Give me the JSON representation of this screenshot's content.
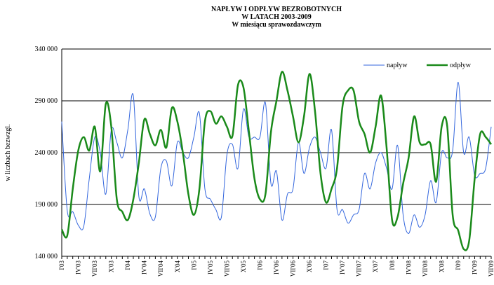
{
  "chart_data": {
    "type": "line",
    "title": [
      "NAPŁYW I ODPŁYW BEZROBOTNYCH",
      "W LATACH 2003-2009",
      "W miesiącu sprawozdawczym"
    ],
    "y_label": "w liczbach bezwzgl.",
    "categories": [
      "I'03",
      null,
      null,
      "IV'03",
      null,
      null,
      "VII'03",
      null,
      null,
      "X'03",
      null,
      null,
      "I'04",
      null,
      null,
      "IV'04",
      null,
      null,
      "VII'04",
      null,
      null,
      "X'04",
      null,
      null,
      "I'05",
      null,
      null,
      "IV'05",
      null,
      null,
      "VII'05",
      null,
      null,
      "X'05",
      null,
      null,
      "I'06",
      null,
      null,
      "IV'06",
      null,
      null,
      "VII'06",
      null,
      null,
      "X'06",
      null,
      null,
      "I'07",
      null,
      null,
      "IV'07",
      null,
      null,
      "VII'07",
      null,
      null,
      "X'07",
      null,
      null,
      "I'08",
      null,
      null,
      "IV'08",
      null,
      null,
      "VII'08",
      null,
      null,
      "X'08",
      null,
      null,
      "I'09",
      null,
      null,
      "IV'09",
      null,
      null,
      "VII'09"
    ],
    "series": [
      {
        "name": "napływ",
        "color": "#3366dd",
        "width": 1,
        "values": [
          270000,
          184000,
          183000,
          170000,
          169000,
          215000,
          255000,
          240000,
          200000,
          262000,
          250000,
          235000,
          262000,
          295000,
          198000,
          205000,
          181000,
          178000,
          225000,
          232000,
          208000,
          250000,
          240000,
          235000,
          255000,
          278000,
          205000,
          195000,
          185000,
          178000,
          238000,
          248000,
          225000,
          282000,
          255000,
          255000,
          255000,
          288000,
          210000,
          222000,
          175000,
          200000,
          205000,
          250000,
          220000,
          245000,
          255000,
          240000,
          225000,
          262000,
          185000,
          185000,
          172000,
          180000,
          185000,
          220000,
          205000,
          230000,
          240000,
          225000,
          205000,
          247000,
          180000,
          162000,
          180000,
          168000,
          180000,
          213000,
          192000,
          240000,
          235000,
          242000,
          308000,
          240000,
          255000,
          218000,
          220000,
          225000,
          265000
        ]
      },
      {
        "name": "odpływ",
        "color": "#1a8a1a",
        "width": 2.5,
        "values": [
          166000,
          160000,
          205000,
          242000,
          255000,
          242000,
          265000,
          222000,
          287000,
          265000,
          195000,
          183000,
          175000,
          195000,
          230000,
          272000,
          258000,
          247000,
          262000,
          245000,
          283000,
          270000,
          240000,
          200000,
          180000,
          205000,
          270000,
          280000,
          268000,
          275000,
          265000,
          256000,
          305000,
          303000,
          260000,
          215000,
          195000,
          200000,
          260000,
          290000,
          318000,
          300000,
          275000,
          250000,
          275000,
          316000,
          280000,
          220000,
          192000,
          205000,
          225000,
          285000,
          300000,
          300000,
          270000,
          258000,
          240000,
          265000,
          295000,
          245000,
          175000,
          178000,
          210000,
          235000,
          275000,
          250000,
          248000,
          248000,
          212000,
          265000,
          266000,
          180000,
          165000,
          147000,
          155000,
          215000,
          258000,
          255000,
          248000
        ]
      }
    ],
    "ylim": [
      140000,
      340000
    ],
    "yticks": [
      {
        "value": 140000,
        "label": "140 000"
      },
      {
        "value": 190000,
        "label": "190 000"
      },
      {
        "value": 240000,
        "label": "240 000"
      },
      {
        "value": 290000,
        "label": "290 000"
      },
      {
        "value": 340000,
        "label": "340 000"
      }
    ],
    "grid": true,
    "legend": "upper right"
  }
}
